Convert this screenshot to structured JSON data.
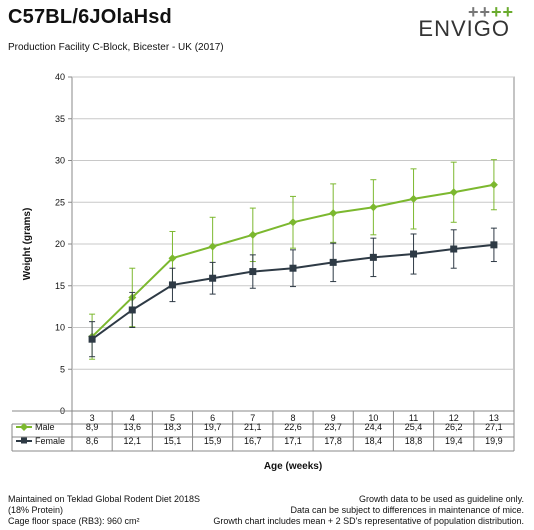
{
  "header": {
    "title": "C57BL/6JOlaHsd",
    "subtitle": "Production Facility C-Block, Bicester - UK (2017)"
  },
  "logo": {
    "plus_green": "++",
    "plus_grey_a": "+",
    "plus_grey_b": "+",
    "wordmark": "ENVIGO"
  },
  "footer": {
    "left_line1": "Maintained on Teklad Global Rodent Diet 2018S",
    "left_line2": "(18% Protein)",
    "left_line3": "Cage floor space (RB3): 960 cm²",
    "right_line1": "Growth data to be used as guideline only.",
    "right_line2": "Data can be subject to differences in maintenance of mice.",
    "right_line3": "Growth chart includes mean + 2 SD's representative of population distribution."
  },
  "chart_data": {
    "type": "line",
    "xlabel": "Age (weeks)",
    "ylabel": "Weight (grams)",
    "ylim": [
      0,
      40
    ],
    "yticks": [
      0,
      5,
      10,
      15,
      20,
      25,
      30,
      35,
      40
    ],
    "categories": [
      "3",
      "4",
      "5",
      "6",
      "7",
      "8",
      "9",
      "10",
      "11",
      "12",
      "13"
    ],
    "grid": true,
    "legend": "table-below",
    "series": [
      {
        "name": "Male",
        "color": "#7cb82f",
        "marker": "diamond",
        "values": [
          8.9,
          13.6,
          18.3,
          19.7,
          21.1,
          22.6,
          23.7,
          24.4,
          25.4,
          26.2,
          27.1
        ],
        "labels": [
          "8,9",
          "13,6",
          "18,3",
          "19,7",
          "21,1",
          "22,6",
          "23,7",
          "24,4",
          "25,4",
          "26,2",
          "27,1"
        ],
        "error": [
          2.7,
          3.5,
          3.2,
          3.5,
          3.2,
          3.1,
          3.5,
          3.3,
          3.6,
          3.6,
          3.0
        ]
      },
      {
        "name": "Female",
        "color": "#2e3a45",
        "marker": "square",
        "values": [
          8.6,
          12.1,
          15.1,
          15.9,
          16.7,
          17.1,
          17.8,
          18.4,
          18.8,
          19.4,
          19.9
        ],
        "labels": [
          "8,6",
          "12,1",
          "15,1",
          "15,9",
          "16,7",
          "17,1",
          "17,8",
          "18,4",
          "18,8",
          "19,4",
          "19,9"
        ],
        "error": [
          2.1,
          2.1,
          2.0,
          1.9,
          2.0,
          2.2,
          2.3,
          2.3,
          2.4,
          2.3,
          2.0
        ]
      }
    ]
  }
}
